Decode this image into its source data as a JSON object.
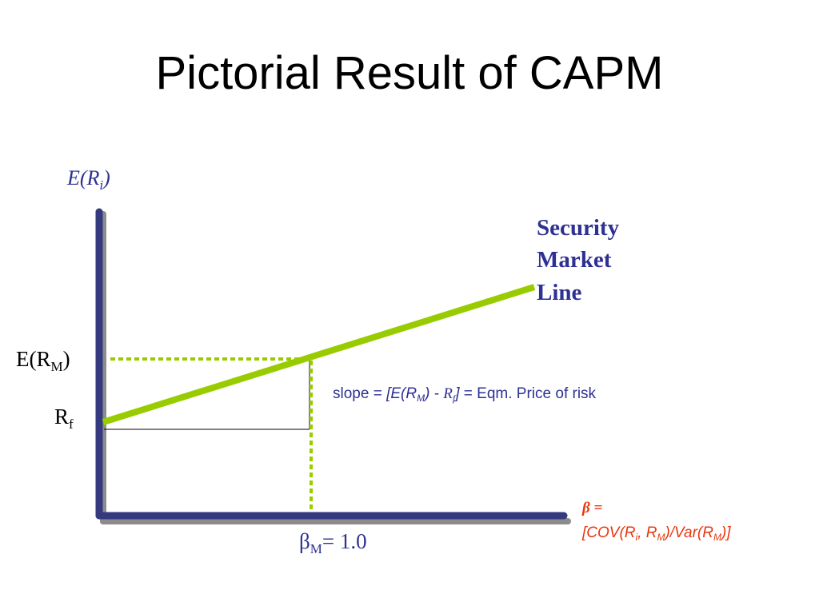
{
  "slide": {
    "title": "Pictorial Result of CAPM"
  },
  "diagram": {
    "y_axis_label": {
      "main": "E(R",
      "sub": "i",
      "close": ")"
    },
    "line_label": [
      "Security",
      "Market",
      "Line"
    ],
    "erm_label": {
      "main": "E(R",
      "sub": "M",
      "close": ")"
    },
    "rf_label": {
      "main": "R",
      "sub": "f"
    },
    "beta_m_label": {
      "main": "β",
      "sub": "M",
      "rest": "= 1.0"
    },
    "slope_label": {
      "prefix": "slope = ",
      "bracket_open": "[E(R",
      "sub_m": "M",
      "mid": ") - ",
      "rf_main": "R",
      "rf_sub": "f",
      "bracket_close": "]",
      "suffix": " = Eqm. Price of risk"
    },
    "beta_def": {
      "line1": "β =",
      "l2_open": "[COV(R",
      "l2_sub_i": "i",
      "l2_mid": ", R",
      "l2_sub_m": "M",
      "l2_var": ")/Var(R",
      "l2_sub_m2": "M",
      "l2_close": ")]"
    },
    "colors": {
      "axis": "#353A7E",
      "axis_shadow": "#8C8C8C",
      "sml": "#99CC00",
      "label_blue": "#2E3192",
      "beta_red": "#E8370E"
    }
  }
}
